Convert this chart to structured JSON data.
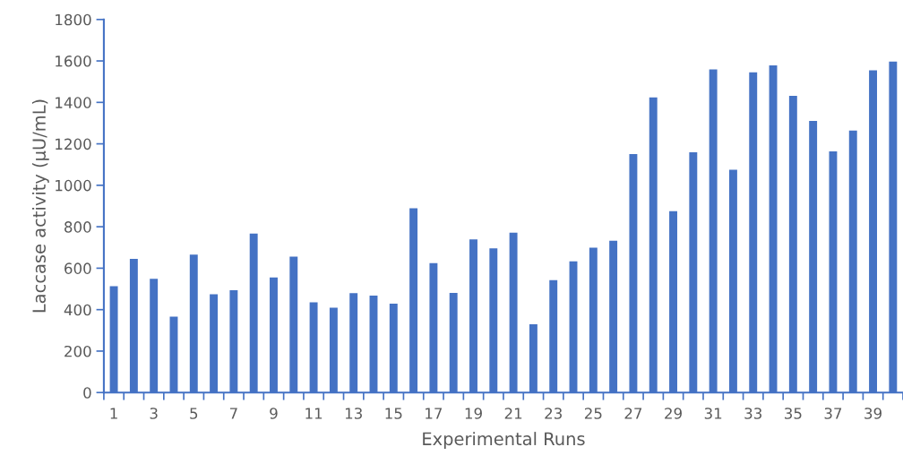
{
  "chart_data": {
    "type": "bar",
    "xlabel": "Experimental Runs",
    "ylabel": "Laccase activity (µU/mL)",
    "categories": [
      "1",
      null,
      "3",
      null,
      "5",
      null,
      "7",
      null,
      "9",
      null,
      "11",
      null,
      "13",
      null,
      "15",
      null,
      "17",
      null,
      "19",
      null,
      "21",
      null,
      "23",
      null,
      "25",
      null,
      "27",
      null,
      "29",
      null,
      "31",
      null,
      "33",
      null,
      "35",
      null,
      "37",
      null,
      "39",
      null
    ],
    "series": [
      {
        "color": "#4472c4",
        "values": [
          513,
          645,
          549,
          366,
          666,
          474,
          494,
          767,
          555,
          656,
          435,
          409,
          480,
          468,
          429,
          889,
          624,
          481,
          739,
          696,
          771,
          329,
          542,
          633,
          699,
          733,
          1151,
          1424,
          875,
          1159,
          1559,
          1075,
          1545,
          1579,
          1432,
          1311,
          1164,
          1264,
          1555,
          1597
        ]
      }
    ],
    "ylim": [
      0,
      1800
    ],
    "yticks": [
      0,
      200,
      400,
      600,
      800,
      1000,
      1200,
      1400,
      1600,
      1800
    ],
    "grid": false
  }
}
